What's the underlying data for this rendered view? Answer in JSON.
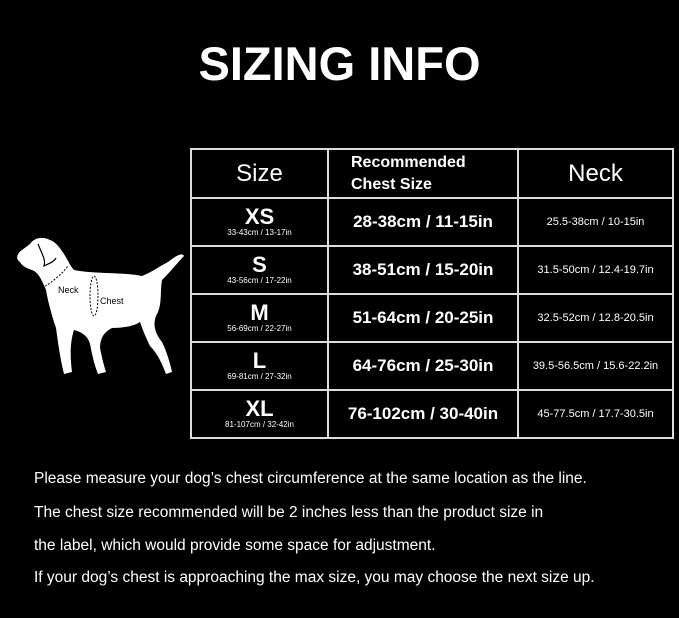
{
  "title": "SIZING INFO",
  "diagram_labels": {
    "neck": "Neck",
    "chest": "Chest"
  },
  "table": {
    "headers": {
      "size": "Size",
      "recommended_line1": "Recommended",
      "recommended_line2": "Chest Size",
      "neck": "Neck"
    },
    "rows": [
      {
        "size": "XS",
        "product_size": "33-43cm / 13-17in",
        "chest": "28-38cm / 11-15in",
        "neck": "25.5-38cm / 10-15in"
      },
      {
        "size": "S",
        "product_size": "43-56cm / 17-22in",
        "chest": "38-51cm / 15-20in",
        "neck": "31.5-50cm / 12.4-19.7in"
      },
      {
        "size": "M",
        "product_size": "56-69cm / 22-27in",
        "chest": "51-64cm / 20-25in",
        "neck": "32.5-52cm / 12.8-20.5in"
      },
      {
        "size": "L",
        "product_size": "69-81cm / 27-32in",
        "chest": "64-76cm / 25-30in",
        "neck": "39.5-56.5cm / 15.6-22.2in"
      },
      {
        "size": "XL",
        "product_size": "81-107cm / 32-42in",
        "chest": "76-102cm / 30-40in",
        "neck": "45-77.5cm / 17.7-30.5in"
      }
    ]
  },
  "notes": [
    "Please measure your dog’s chest circumference at the same location as the line.",
    "The chest size recommended will be 2 inches less than the product size in",
    "the label, which would provide some space for adjustment.",
    "If your dog’s chest is approaching the max size, you may choose the next size up."
  ]
}
